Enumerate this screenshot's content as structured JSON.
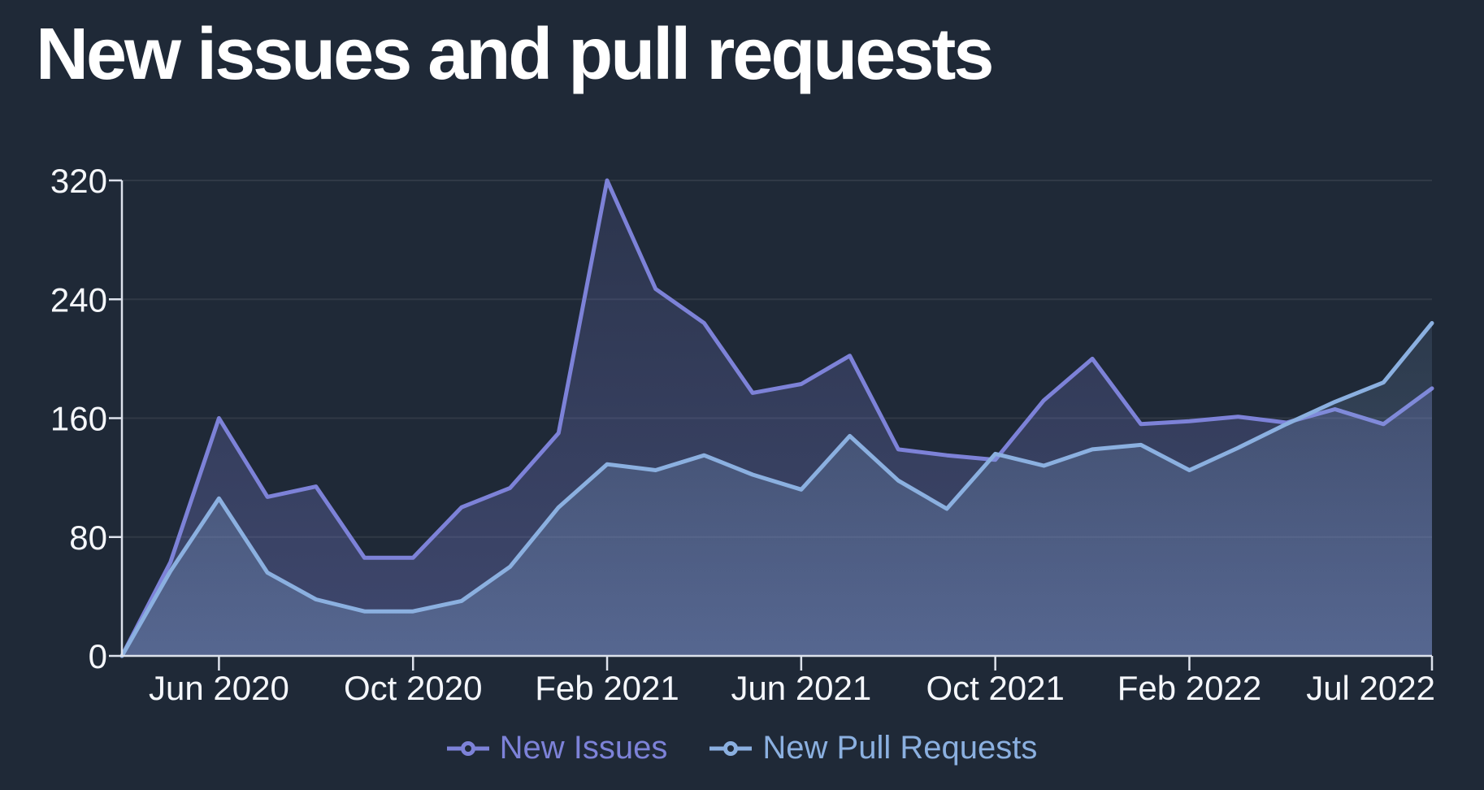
{
  "title": "New issues and pull requests",
  "colors": {
    "background": "#1f2937",
    "title_text": "#ffffff",
    "axis_line": "#dde2ec",
    "tick_label": "#f5f7fb",
    "gridline": "rgba(255,255,255,0.08)",
    "issues_accent": "#7d82d8",
    "pull_requests_accent": "#8bb0e0"
  },
  "legend": {
    "items": [
      {
        "label": "New Issues",
        "icon": "line-marker-icon",
        "color": "#7d82d8"
      },
      {
        "label": "New Pull Requests",
        "icon": "line-marker-icon",
        "color": "#8bb0e0"
      }
    ]
  },
  "chart_data": {
    "type": "area",
    "title": "New issues and pull requests",
    "xlabel": "",
    "ylabel": "",
    "ylim": [
      0,
      320
    ],
    "y_ticks": [
      0,
      80,
      160,
      240,
      320
    ],
    "grid": true,
    "legend_position": "bottom",
    "x": [
      "Apr 2020",
      "May 2020",
      "Jun 2020",
      "Jul 2020",
      "Aug 2020",
      "Sep 2020",
      "Oct 2020",
      "Nov 2020",
      "Dec 2020",
      "Jan 2021",
      "Feb 2021",
      "Mar 2021",
      "Apr 2021",
      "May 2021",
      "Jun 2021",
      "Jul 2021",
      "Aug 2021",
      "Sep 2021",
      "Oct 2021",
      "Nov 2021",
      "Dec 2021",
      "Jan 2022",
      "Feb 2022",
      "Mar 2022",
      "Apr 2022",
      "May 2022",
      "Jun 2022",
      "Jul 2022"
    ],
    "x_tick_labels": [
      {
        "index": 2,
        "label": "Jun 2020"
      },
      {
        "index": 6,
        "label": "Oct 2020"
      },
      {
        "index": 10,
        "label": "Feb 2021"
      },
      {
        "index": 14,
        "label": "Jun 2021"
      },
      {
        "index": 18,
        "label": "Oct 2021"
      },
      {
        "index": 22,
        "label": "Feb 2022"
      },
      {
        "index": 27,
        "label": "Jul 2022"
      }
    ],
    "series": [
      {
        "name": "New Issues",
        "color": "#7d82d8",
        "values": [
          0,
          63,
          160,
          107,
          114,
          66,
          66,
          100,
          113,
          150,
          320,
          247,
          224,
          177,
          183,
          202,
          139,
          135,
          132,
          172,
          200,
          156,
          158,
          161,
          157,
          166,
          156,
          180
        ]
      },
      {
        "name": "New Pull Requests",
        "color": "#8bb0e0",
        "values": [
          0,
          57,
          106,
          56,
          38,
          30,
          30,
          37,
          60,
          100,
          129,
          125,
          135,
          122,
          112,
          148,
          118,
          99,
          136,
          128,
          139,
          142,
          125,
          140,
          156,
          171,
          184,
          224
        ]
      }
    ]
  }
}
